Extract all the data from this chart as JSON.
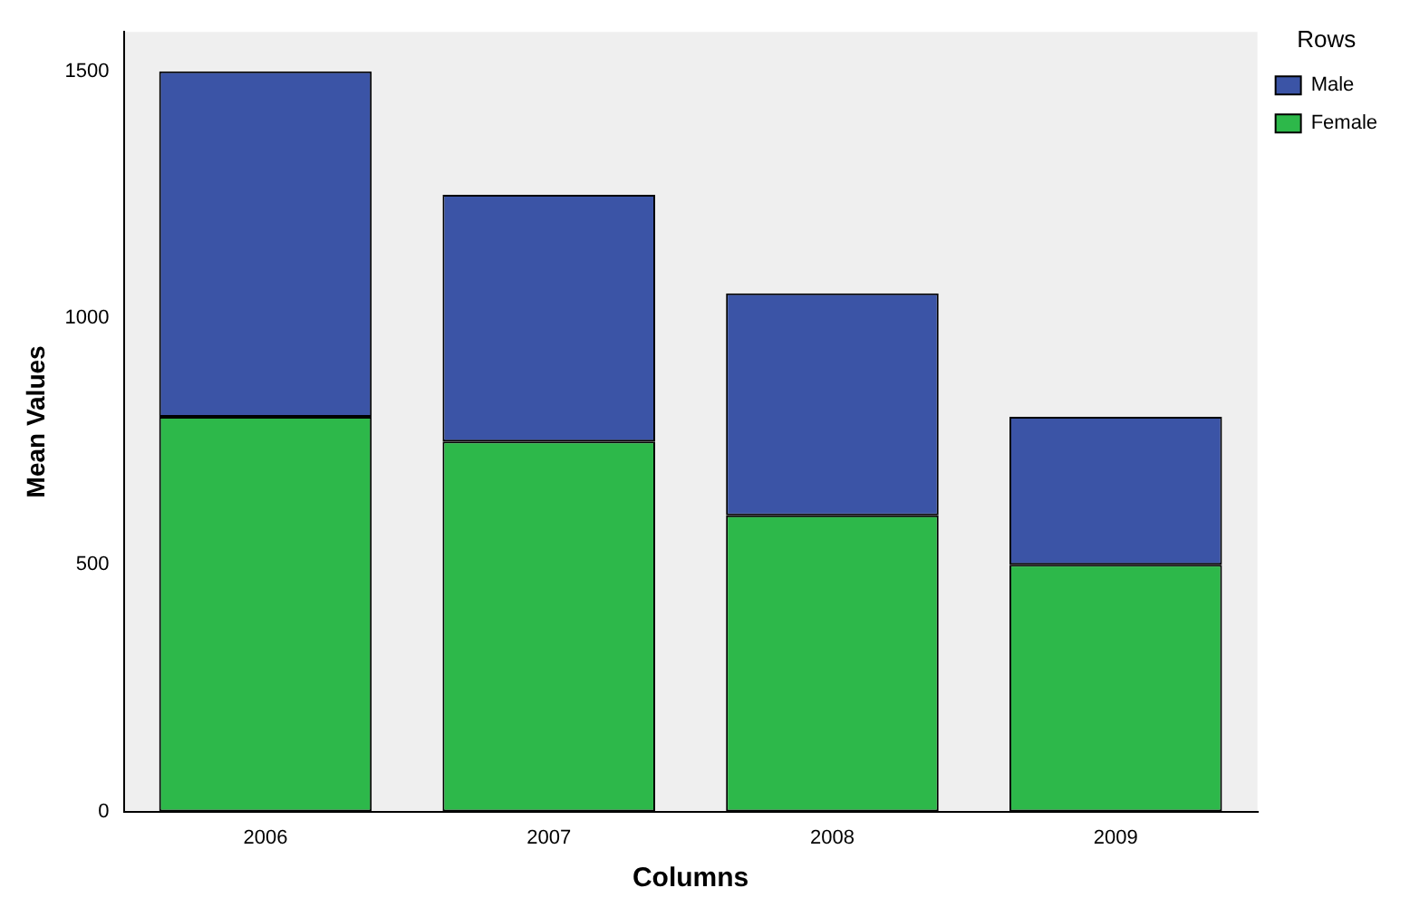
{
  "chart_data": {
    "type": "bar",
    "xlabel": "Columns",
    "ylabel": "Mean Values",
    "legend_title": "Rows",
    "categories": [
      "2006",
      "2007",
      "2008",
      "2009"
    ],
    "stacked": true,
    "series": [
      {
        "name": "Female",
        "color": "#2db84a",
        "values": [
          800,
          750,
          600,
          500
        ]
      },
      {
        "name": "Male",
        "color": "#3b54a6",
        "values": [
          700,
          500,
          450,
          300
        ]
      }
    ],
    "ylim": [
      0,
      1580
    ],
    "yticks": [
      0,
      500,
      1000,
      1500
    ],
    "grid": false,
    "legend": "top right"
  }
}
